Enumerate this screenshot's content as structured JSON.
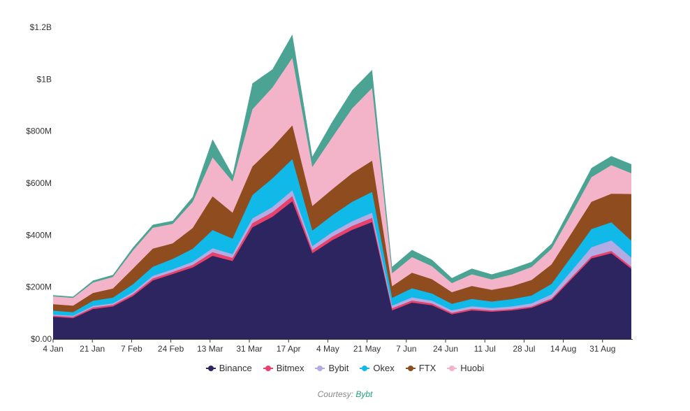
{
  "chart_data": {
    "type": "area",
    "stacked": true,
    "title": "",
    "xlabel": "",
    "ylabel": "",
    "ylim": [
      0,
      1200
    ],
    "y_unit": "millions USD",
    "y_ticks": [
      {
        "value": 0,
        "label": "$0.00"
      },
      {
        "value": 200,
        "label": "$200M"
      },
      {
        "value": 400,
        "label": "$400M"
      },
      {
        "value": 600,
        "label": "$600M"
      },
      {
        "value": 800,
        "label": "$800M"
      },
      {
        "value": 1000,
        "label": "$1B"
      },
      {
        "value": 1200,
        "label": "$1.2B"
      }
    ],
    "x_ticks": [
      "4 Jan",
      "21 Jan",
      "7 Feb",
      "24 Feb",
      "13 Mar",
      "31 Mar",
      "17 Apr",
      "4 May",
      "21 May",
      "7 Jun",
      "24 Jun",
      "11 Jul",
      "28 Jul",
      "14 Aug",
      "31 Aug"
    ],
    "grid": false,
    "legend_position": "bottom",
    "x": [
      "4 Jan",
      "13 Jan",
      "21 Jan",
      "30 Jan",
      "7 Feb",
      "15 Feb",
      "24 Feb",
      "5 Mar",
      "13 Mar",
      "22 Mar",
      "31 Mar",
      "8 Apr",
      "17 Apr",
      "26 Apr",
      "4 May",
      "12 May",
      "21 May",
      "30 May",
      "7 Jun",
      "15 Jun",
      "24 Jun",
      "2 Jul",
      "11 Jul",
      "20 Jul",
      "28 Jul",
      "6 Aug",
      "14 Aug",
      "22 Aug",
      "31 Aug",
      "10 Sep"
    ],
    "series": [
      {
        "name": "Binance",
        "color": "#2d2560",
        "values": [
          85,
          80,
          115,
          125,
          165,
          225,
          250,
          275,
          320,
          300,
          430,
          470,
          530,
          330,
          380,
          420,
          450,
          110,
          140,
          130,
          95,
          110,
          105,
          110,
          120,
          150,
          230,
          310,
          330,
          270
        ]
      },
      {
        "name": "Bitmex",
        "color": "#e8426c",
        "values": [
          5,
          5,
          6,
          6,
          7,
          8,
          8,
          10,
          14,
          12,
          16,
          18,
          20,
          12,
          14,
          15,
          16,
          8,
          8,
          7,
          6,
          6,
          5,
          5,
          5,
          6,
          7,
          8,
          9,
          8
        ]
      },
      {
        "name": "Bybit",
        "color": "#b3abe3",
        "values": [
          4,
          4,
          6,
          6,
          8,
          10,
          10,
          12,
          15,
          14,
          18,
          20,
          22,
          15,
          17,
          18,
          20,
          10,
          12,
          10,
          9,
          10,
          9,
          10,
          12,
          16,
          25,
          35,
          40,
          35
        ]
      },
      {
        "name": "Okex",
        "color": "#10b9e8",
        "values": [
          15,
          14,
          20,
          22,
          30,
          35,
          40,
          50,
          70,
          60,
          90,
          110,
          120,
          60,
          65,
          75,
          80,
          30,
          35,
          28,
          25,
          28,
          25,
          28,
          30,
          40,
          55,
          70,
          70,
          65
        ]
      },
      {
        "name": "FTX",
        "color": "#8f4c1f",
        "values": [
          25,
          25,
          30,
          35,
          60,
          70,
          60,
          80,
          130,
          100,
          110,
          120,
          130,
          95,
          100,
          110,
          120,
          45,
          60,
          55,
          45,
          50,
          45,
          50,
          60,
          75,
          90,
          105,
          110,
          180
        ]
      },
      {
        "name": "Huobi",
        "color": "#f3b3c8",
        "values": [
          30,
          30,
          40,
          45,
          70,
          80,
          75,
          100,
          150,
          120,
          220,
          230,
          260,
          150,
          200,
          250,
          280,
          50,
          60,
          50,
          35,
          45,
          40,
          45,
          50,
          60,
          75,
          95,
          110,
          80
        ]
      }
    ],
    "top_band": {
      "color": "#4aa393",
      "values": [
        5,
        5,
        8,
        8,
        12,
        12,
        12,
        20,
        70,
        25,
        100,
        70,
        90,
        40,
        60,
        70,
        70,
        25,
        28,
        25,
        20,
        22,
        20,
        22,
        20,
        20,
        30,
        35,
        35,
        35
      ]
    }
  },
  "courtesy": {
    "prefix": "Courtesy: ",
    "source": "Bybt"
  }
}
